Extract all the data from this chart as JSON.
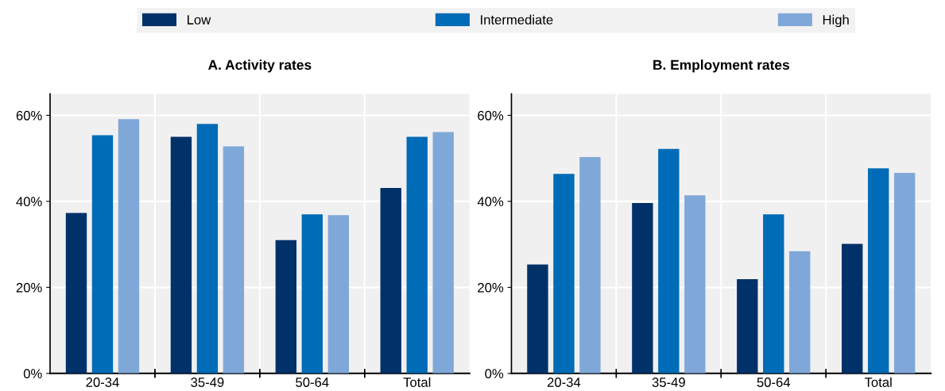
{
  "chart_data": [
    {
      "type": "bar",
      "title": "A. Activity rates",
      "categories": [
        "20-34",
        "35-49",
        "50-64",
        "Total"
      ],
      "series": [
        {
          "name": "Low",
          "color": "#003169",
          "values": [
            37.3,
            55.0,
            31.0,
            43.1
          ]
        },
        {
          "name": "Intermediate",
          "color": "#006bb6",
          "values": [
            55.4,
            58.0,
            37.0,
            55.0
          ]
        },
        {
          "name": "High",
          "color": "#7fa8d9",
          "values": [
            59.1,
            52.8,
            36.8,
            56.1
          ]
        }
      ],
      "ylim": [
        0,
        65
      ],
      "yticks": [
        {
          "value": 0,
          "label": "0%"
        },
        {
          "value": 20,
          "label": "20%"
        },
        {
          "value": 40,
          "label": "40%"
        },
        {
          "value": 60,
          "label": "60%"
        }
      ],
      "grid": "y",
      "legend": "top"
    },
    {
      "type": "bar",
      "title": "B. Employment rates",
      "categories": [
        "20-34",
        "35-49",
        "50-64",
        "Total"
      ],
      "series": [
        {
          "color": "#003169",
          "values": [
            25.3,
            39.6,
            21.9,
            30.1
          ]
        },
        {
          "color": "#006bb6",
          "values": [
            46.4,
            52.2,
            37.0,
            47.7
          ]
        },
        {
          "color": "#7fa8d9",
          "values": [
            50.3,
            41.4,
            28.4,
            46.6
          ]
        }
      ],
      "ylim": [
        0,
        65
      ],
      "yticks": [
        {
          "value": 0,
          "label": "0%"
        },
        {
          "value": 20,
          "label": "20%"
        },
        {
          "value": 40,
          "label": "40%"
        },
        {
          "value": 60,
          "label": "60%"
        }
      ],
      "grid": "y"
    }
  ]
}
